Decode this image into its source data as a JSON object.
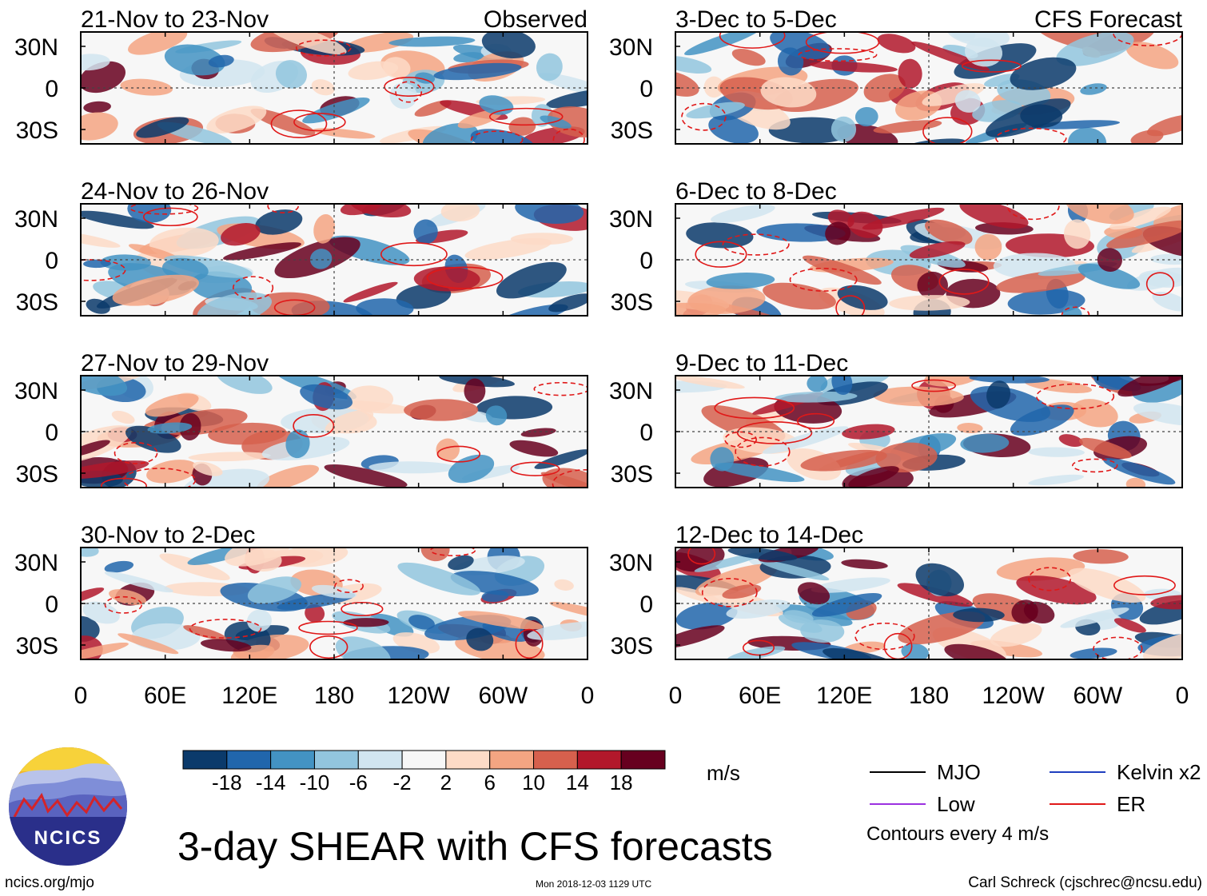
{
  "figure": {
    "title": "3-day SHEAR with CFS forecasts",
    "source_url_text": "ncics.org/mjo",
    "timestamp": "Mon 2018-12-03 1129 UTC",
    "credit": "Carl Schreck (cjschrec@ncsu.edu)",
    "logo_text": "NCICS",
    "units": "m/s",
    "contour_note": "Contours every 4 m/s"
  },
  "chart_data": {
    "type": "heatmap",
    "variable": "3-day vertical wind shear anomaly",
    "columns": [
      {
        "label": "Observed",
        "panels": [
          "21-Nov to 23-Nov",
          "24-Nov to 26-Nov",
          "27-Nov to 29-Nov",
          "30-Nov to 2-Dec"
        ]
      },
      {
        "label": "CFS Forecast",
        "panels": [
          "3-Dec to 5-Dec",
          "6-Dec to 8-Dec",
          "9-Dec to 11-Dec",
          "12-Dec to 14-Dec"
        ]
      }
    ],
    "x_ticks": [
      "0",
      "60E",
      "120E",
      "180",
      "120W",
      "60W",
      "0"
    ],
    "x_range_deg": [
      0,
      360
    ],
    "y_ticks": [
      "30N",
      "0",
      "30S"
    ],
    "y_range_deg": [
      -40,
      40
    ],
    "colorbar": {
      "ticks": [
        "-18",
        "-14",
        "-10",
        "-6",
        "-2",
        "2",
        "6",
        "10",
        "14",
        "18"
      ],
      "colors": [
        "#0b3a6b",
        "#2166ac",
        "#4393c3",
        "#92c5de",
        "#d1e5f0",
        "#f7f7f7",
        "#fddbc7",
        "#f4a582",
        "#d6604d",
        "#b2182b",
        "#67001f"
      ]
    },
    "legend": [
      {
        "name": "MJO",
        "color": "#000000"
      },
      {
        "name": "Kelvin x2",
        "color": "#1f3fbf"
      },
      {
        "name": "Low",
        "color": "#9b30e0"
      },
      {
        "name": "ER",
        "color": "#e01818"
      }
    ]
  }
}
